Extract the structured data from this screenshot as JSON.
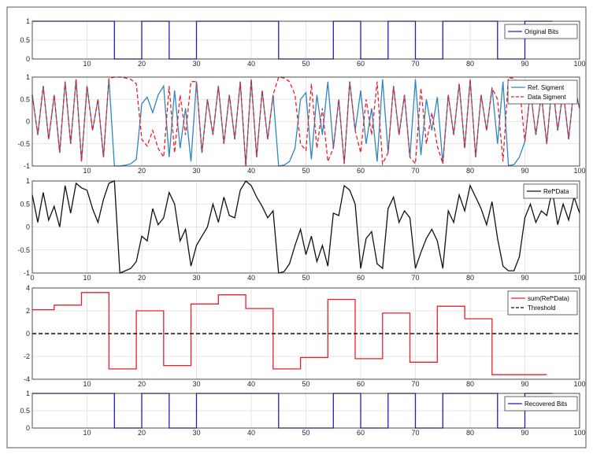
{
  "colors": {
    "blue": "#1f1fbf",
    "ref": "#2e86c1",
    "red": "#e8202a",
    "black": "#111111",
    "grid": "#dddddd"
  },
  "chart_data": [
    {
      "type": "line",
      "x_step": "stairs",
      "xlim": [
        0,
        100
      ],
      "ylim": [
        0,
        1
      ],
      "xticks": [
        10,
        20,
        30,
        40,
        50,
        60,
        70,
        80,
        90,
        100
      ],
      "yticks": [
        0,
        0.5,
        1
      ],
      "ytick_labels": [
        "0",
        "0.5",
        "1"
      ],
      "grid": true,
      "legend_position": "top-right",
      "series": [
        {
          "name": "Original Bits",
          "color": "#1f1fbf",
          "style": "step",
          "x": [
            0,
            5,
            10,
            15,
            20,
            25,
            30,
            35,
            40,
            45,
            50,
            55,
            60,
            65,
            70,
            75,
            80,
            85,
            90
          ],
          "values": [
            1,
            1,
            1,
            0,
            1,
            0,
            1,
            1,
            1,
            0,
            0,
            1,
            0,
            1,
            0,
            1,
            1,
            0,
            1
          ]
        }
      ]
    },
    {
      "type": "line",
      "xlim": [
        0,
        100
      ],
      "ylim": [
        -1,
        1
      ],
      "xticks": [
        10,
        20,
        30,
        40,
        50,
        60,
        70,
        80,
        90,
        100
      ],
      "yticks": [
        -1,
        -0.5,
        0,
        0.5,
        1
      ],
      "ytick_labels": [
        "-1",
        "-0.5",
        "0",
        "0.5",
        "1"
      ],
      "grid": true,
      "legend_position": "top-right",
      "series": [
        {
          "name": "Ref. Sigment",
          "color": "#2e86c1",
          "style": "solid",
          "x": [
            0,
            1,
            2,
            3,
            4,
            5,
            6,
            7,
            8,
            9,
            10,
            11,
            12,
            13,
            14,
            15,
            16,
            17,
            18,
            19,
            20,
            21,
            22,
            23,
            24,
            25,
            26,
            27,
            28,
            29,
            30,
            31,
            32,
            33,
            34,
            35,
            36,
            37,
            38,
            39,
            40,
            41,
            42,
            43,
            44,
            45,
            46,
            47,
            48,
            49,
            50,
            51,
            52,
            53,
            54,
            55,
            56,
            57,
            58,
            59,
            60,
            61,
            62,
            63,
            64,
            65,
            66,
            67,
            68,
            69,
            70,
            71,
            72,
            73,
            74,
            75,
            76,
            77,
            78,
            79,
            80,
            81,
            82,
            83,
            84,
            85,
            86,
            87,
            88,
            89,
            90,
            91,
            92,
            93,
            94,
            95,
            96,
            97,
            98,
            99,
            100
          ],
          "values": [
            0.6,
            -0.3,
            0.8,
            -0.4,
            0.6,
            -0.7,
            0.9,
            -0.5,
            0.95,
            -0.9,
            0.8,
            -0.2,
            0.5,
            -0.8,
            0.97,
            -1.0,
            -1.0,
            -0.98,
            -0.95,
            -0.85,
            0.4,
            0.55,
            0.2,
            0.6,
            0.8,
            -0.8,
            0.7,
            -0.6,
            0.3,
            -0.9,
            0.9,
            -0.7,
            0.5,
            -0.3,
            0.8,
            -0.5,
            0.6,
            -0.4,
            0.9,
            -1.0,
            0.95,
            -0.8,
            0.7,
            -0.4,
            0.6,
            -1.0,
            -0.98,
            -0.9,
            -0.6,
            0.5,
            0.65,
            -0.85,
            0.6,
            -0.3,
            0.9,
            -0.6,
            0.5,
            -0.95,
            0.9,
            -0.2,
            0.7,
            -0.5,
            0.3,
            -0.9,
            0.95,
            -0.7,
            0.8,
            -0.3,
            0.6,
            -0.8,
            0.95,
            -0.75,
            0.5,
            -0.2,
            0.55,
            -0.95,
            0.6,
            -0.3,
            0.85,
            -0.6,
            0.95,
            -0.8,
            0.6,
            -0.2,
            0.75,
            -0.5,
            0.9,
            -0.99,
            -0.97,
            -0.8,
            -0.45,
            0.7,
            -0.3,
            0.6,
            -0.5,
            0.9,
            -0.2,
            0.7,
            -0.4,
            0.8,
            0.3
          ]
        },
        {
          "name": "Data Sigment",
          "color": "#e8202a",
          "style": "dashed",
          "x": [
            0,
            1,
            2,
            3,
            4,
            5,
            6,
            7,
            8,
            9,
            10,
            11,
            12,
            13,
            14,
            15,
            16,
            17,
            18,
            19,
            20,
            21,
            22,
            23,
            24,
            25,
            26,
            27,
            28,
            29,
            30,
            31,
            32,
            33,
            34,
            35,
            36,
            37,
            38,
            39,
            40,
            41,
            42,
            43,
            44,
            45,
            46,
            47,
            48,
            49,
            50,
            51,
            52,
            53,
            54,
            55,
            56,
            57,
            58,
            59,
            60,
            61,
            62,
            63,
            64,
            65,
            66,
            67,
            68,
            69,
            70,
            71,
            72,
            73,
            74,
            75,
            76,
            77,
            78,
            79,
            80,
            81,
            82,
            83,
            84,
            85,
            86,
            87,
            88,
            89,
            90,
            91,
            92,
            93,
            94,
            95,
            96,
            97,
            98,
            99,
            100
          ],
          "values": [
            0.6,
            -0.3,
            0.8,
            -0.4,
            0.6,
            -0.7,
            0.9,
            -0.5,
            0.95,
            -0.9,
            0.8,
            -0.2,
            0.5,
            -0.8,
            0.97,
            1.0,
            1.0,
            0.98,
            0.95,
            0.85,
            -0.4,
            -0.55,
            -0.2,
            -0.6,
            -0.8,
            0.8,
            -0.7,
            0.6,
            -0.3,
            0.9,
            0.9,
            -0.7,
            0.5,
            -0.3,
            0.8,
            -0.5,
            0.6,
            -0.4,
            0.9,
            -1.0,
            0.95,
            -0.8,
            0.7,
            -0.4,
            0.6,
            1.0,
            0.98,
            0.9,
            0.6,
            -0.5,
            -0.65,
            0.85,
            -0.6,
            0.3,
            -0.9,
            -0.6,
            0.5,
            -0.95,
            0.9,
            -0.2,
            -0.7,
            0.5,
            -0.3,
            0.9,
            -0.95,
            -0.7,
            0.8,
            -0.3,
            0.6,
            -0.8,
            -0.95,
            0.75,
            -0.5,
            0.2,
            -0.55,
            -0.95,
            0.6,
            -0.3,
            0.85,
            -0.6,
            0.95,
            -0.8,
            0.6,
            -0.2,
            0.75,
            0.5,
            -0.9,
            0.99,
            0.97,
            0.8,
            -0.45,
            0.7,
            -0.3,
            0.6,
            -0.5,
            0.9,
            -0.2,
            0.7,
            -0.4,
            0.8,
            0.3
          ]
        }
      ]
    },
    {
      "type": "line",
      "xlim": [
        0,
        100
      ],
      "ylim": [
        -1,
        1
      ],
      "xticks": [
        0,
        10,
        20,
        30,
        40,
        50,
        60,
        70,
        80,
        90,
        100
      ],
      "yticks": [
        -1,
        -0.5,
        0,
        0.5,
        1
      ],
      "ytick_labels": [
        "-1",
        "-0.5",
        "0",
        "0.5",
        "1"
      ],
      "grid": true,
      "legend_position": "top-right",
      "series": [
        {
          "name": "Ref*Data",
          "color": "#111111",
          "style": "solid",
          "x": [
            0,
            1,
            2,
            3,
            4,
            5,
            6,
            7,
            8,
            9,
            10,
            11,
            12,
            13,
            14,
            15,
            16,
            17,
            18,
            19,
            20,
            21,
            22,
            23,
            24,
            25,
            26,
            27,
            28,
            29,
            30,
            31,
            32,
            33,
            34,
            35,
            36,
            37,
            38,
            39,
            40,
            41,
            42,
            43,
            44,
            45,
            46,
            47,
            48,
            49,
            50,
            51,
            52,
            53,
            54,
            55,
            56,
            57,
            58,
            59,
            60,
            61,
            62,
            63,
            64,
            65,
            66,
            67,
            68,
            69,
            70,
            71,
            72,
            73,
            74,
            75,
            76,
            77,
            78,
            79,
            80,
            81,
            82,
            83,
            84,
            85,
            86,
            87,
            88,
            89,
            90,
            91,
            92,
            93,
            94,
            95,
            96,
            97,
            98,
            99,
            100
          ],
          "values": [
            0.7,
            0.1,
            0.75,
            0.15,
            0.45,
            0.0,
            0.9,
            0.3,
            0.95,
            0.85,
            0.8,
            0.4,
            0.1,
            0.6,
            0.95,
            1.0,
            -1.0,
            -0.95,
            -0.9,
            -0.75,
            -0.2,
            -0.3,
            0.4,
            0.05,
            0.2,
            0.75,
            0.5,
            -0.3,
            -0.05,
            -0.85,
            -0.4,
            -0.2,
            0.0,
            0.5,
            0.1,
            0.65,
            0.25,
            0.2,
            0.8,
            1.0,
            0.9,
            0.65,
            0.45,
            0.2,
            0.35,
            -1.0,
            -0.97,
            -0.8,
            -0.4,
            -0.05,
            -0.6,
            -0.2,
            -0.75,
            -0.4,
            -0.85,
            0.3,
            0.25,
            0.9,
            0.8,
            0.5,
            -0.9,
            -0.25,
            -0.1,
            -0.8,
            -0.9,
            0.4,
            0.65,
            0.1,
            0.35,
            0.2,
            -0.9,
            -0.55,
            -0.25,
            -0.05,
            -0.3,
            -0.9,
            0.35,
            0.1,
            0.7,
            0.35,
            0.9,
            0.65,
            0.4,
            0.05,
            0.55,
            -0.25,
            -0.85,
            -0.95,
            -0.95,
            -0.65,
            0.2,
            0.5,
            0.1,
            0.35,
            0.25,
            0.8,
            0.05,
            0.5,
            0.15,
            0.65,
            0.3
          ]
        }
      ]
    },
    {
      "type": "line",
      "x_step": "stairs",
      "xlim": [
        0,
        100
      ],
      "ylim": [
        -4,
        4
      ],
      "xticks": [
        10,
        20,
        30,
        40,
        50,
        60,
        70,
        80,
        90,
        100
      ],
      "yticks": [
        -4,
        -2,
        0,
        2,
        4
      ],
      "ytick_labels": [
        "-4",
        "-2",
        "0",
        "2",
        "4"
      ],
      "grid": true,
      "legend_position": "top-right",
      "series": [
        {
          "name": "sum(Ref*Data)",
          "color": "#e8202a",
          "style": "step",
          "x": [
            0,
            4,
            9,
            14,
            19,
            24,
            29,
            34,
            39,
            44,
            49,
            54,
            59,
            64,
            69,
            74,
            79,
            84,
            89
          ],
          "values": [
            2.1,
            2.5,
            3.6,
            -3.1,
            2.0,
            -2.8,
            2.6,
            3.4,
            2.2,
            -3.1,
            -2.1,
            3.0,
            -2.2,
            1.8,
            -2.5,
            2.4,
            1.3,
            -3.6,
            -3.6
          ]
        },
        {
          "name": "Threshold",
          "color": "#111111",
          "style": "dashed",
          "x": [
            0,
            100
          ],
          "values": [
            0,
            0
          ]
        }
      ]
    },
    {
      "type": "line",
      "x_step": "stairs",
      "xlim": [
        0,
        100
      ],
      "ylim": [
        0,
        1
      ],
      "xticks": [
        10,
        20,
        30,
        40,
        50,
        60,
        70,
        80,
        90,
        100
      ],
      "yticks": [
        0,
        0.5,
        1
      ],
      "ytick_labels": [
        "0",
        "0.5",
        "1"
      ],
      "grid": true,
      "legend_position": "top-right",
      "series": [
        {
          "name": "Recovered Bits",
          "color": "#1f1fbf",
          "style": "step",
          "x": [
            0,
            5,
            10,
            15,
            20,
            25,
            30,
            35,
            40,
            45,
            50,
            55,
            60,
            65,
            70,
            75,
            80,
            85,
            90
          ],
          "values": [
            1,
            1,
            1,
            0,
            1,
            0,
            1,
            1,
            1,
            0,
            0,
            1,
            0,
            1,
            0,
            1,
            1,
            0,
            1
          ]
        }
      ]
    }
  ]
}
